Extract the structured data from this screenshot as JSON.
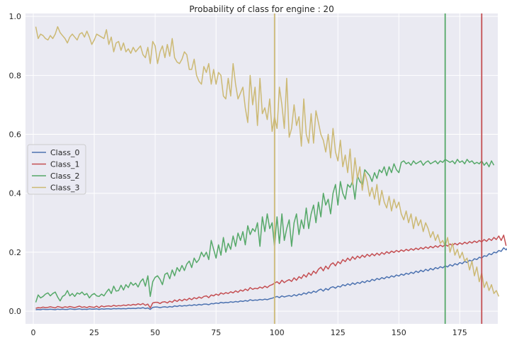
{
  "chart_data": {
    "type": "line",
    "title": "Probability of class for engine : 20",
    "xlabel": "",
    "ylabel": "",
    "xlim": [
      -3.2,
      190.6
    ],
    "ylim": [
      -0.043,
      1.01
    ],
    "x_ticks": [
      0,
      25,
      50,
      75,
      100,
      125,
      150,
      175
    ],
    "y_ticks": [
      0.0,
      0.2,
      0.4,
      0.6,
      0.8,
      1.0
    ],
    "x_tick_labels": [
      "0",
      "25",
      "50",
      "75",
      "100",
      "125",
      "150",
      "175"
    ],
    "y_tick_labels": [
      "0.0",
      "0.2",
      "0.4",
      "0.6",
      "0.8",
      "1.0"
    ],
    "grid": true,
    "legend_position": "center-left",
    "background_color": "#eaeaf2",
    "x_start": 1,
    "series": [
      {
        "name": "Class_0",
        "color": "#4c72b0",
        "values": [
          0.005,
          0.006,
          0.005,
          0.007,
          0.006,
          0.006,
          0.007,
          0.006,
          0.005,
          0.007,
          0.006,
          0.007,
          0.006,
          0.006,
          0.008,
          0.007,
          0.006,
          0.007,
          0.008,
          0.006,
          0.007,
          0.006,
          0.008,
          0.007,
          0.007,
          0.008,
          0.006,
          0.008,
          0.007,
          0.008,
          0.008,
          0.007,
          0.009,
          0.008,
          0.009,
          0.008,
          0.009,
          0.008,
          0.01,
          0.009,
          0.01,
          0.009,
          0.011,
          0.01,
          0.012,
          0.009,
          0.011,
          0.006,
          0.013,
          0.014,
          0.014,
          0.012,
          0.014,
          0.015,
          0.013,
          0.016,
          0.014,
          0.018,
          0.016,
          0.019,
          0.017,
          0.019,
          0.018,
          0.021,
          0.019,
          0.022,
          0.02,
          0.023,
          0.021,
          0.024,
          0.024,
          0.022,
          0.026,
          0.025,
          0.028,
          0.026,
          0.03,
          0.028,
          0.03,
          0.029,
          0.032,
          0.03,
          0.033,
          0.031,
          0.035,
          0.033,
          0.036,
          0.034,
          0.039,
          0.036,
          0.038,
          0.037,
          0.04,
          0.038,
          0.041,
          0.039,
          0.042,
          0.044,
          0.047,
          0.05,
          0.046,
          0.052,
          0.048,
          0.051,
          0.053,
          0.05,
          0.056,
          0.052,
          0.058,
          0.055,
          0.062,
          0.058,
          0.065,
          0.061,
          0.068,
          0.064,
          0.071,
          0.075,
          0.068,
          0.077,
          0.072,
          0.08,
          0.083,
          0.078,
          0.085,
          0.082,
          0.09,
          0.086,
          0.093,
          0.088,
          0.096,
          0.091,
          0.098,
          0.094,
          0.101,
          0.097,
          0.104,
          0.1,
          0.108,
          0.104,
          0.111,
          0.107,
          0.114,
          0.11,
          0.117,
          0.113,
          0.12,
          0.116,
          0.123,
          0.119,
          0.126,
          0.122,
          0.129,
          0.125,
          0.132,
          0.128,
          0.136,
          0.131,
          0.139,
          0.134,
          0.142,
          0.137,
          0.145,
          0.14,
          0.148,
          0.144,
          0.151,
          0.147,
          0.154,
          0.15,
          0.158,
          0.153,
          0.161,
          0.157,
          0.165,
          0.161,
          0.169,
          0.165,
          0.173,
          0.17,
          0.178,
          0.175,
          0.183,
          0.18,
          0.188,
          0.186,
          0.195,
          0.192,
          0.2,
          0.198,
          0.206,
          0.203,
          0.215,
          0.208,
          0.218,
          0.205
        ]
      },
      {
        "name": "Class_1",
        "color": "#c44e52",
        "values": [
          0.01,
          0.012,
          0.011,
          0.014,
          0.012,
          0.013,
          0.015,
          0.013,
          0.011,
          0.016,
          0.014,
          0.012,
          0.015,
          0.013,
          0.016,
          0.014,
          0.012,
          0.015,
          0.017,
          0.013,
          0.015,
          0.012,
          0.016,
          0.014,
          0.013,
          0.017,
          0.012,
          0.018,
          0.015,
          0.017,
          0.018,
          0.016,
          0.02,
          0.017,
          0.019,
          0.018,
          0.021,
          0.019,
          0.022,
          0.02,
          0.023,
          0.021,
          0.025,
          0.022,
          0.026,
          0.02,
          0.024,
          0.011,
          0.028,
          0.03,
          0.03,
          0.026,
          0.031,
          0.032,
          0.028,
          0.034,
          0.03,
          0.038,
          0.033,
          0.04,
          0.035,
          0.041,
          0.037,
          0.044,
          0.039,
          0.046,
          0.042,
          0.048,
          0.044,
          0.05,
          0.052,
          0.046,
          0.055,
          0.052,
          0.058,
          0.054,
          0.062,
          0.058,
          0.063,
          0.06,
          0.066,
          0.062,
          0.069,
          0.064,
          0.072,
          0.068,
          0.075,
          0.07,
          0.08,
          0.074,
          0.078,
          0.076,
          0.082,
          0.078,
          0.085,
          0.08,
          0.087,
          0.09,
          0.095,
          0.1,
          0.093,
          0.105,
          0.097,
          0.103,
          0.107,
          0.101,
          0.113,
          0.105,
          0.117,
          0.111,
          0.124,
          0.116,
          0.13,
          0.122,
          0.136,
          0.128,
          0.142,
          0.149,
          0.137,
          0.153,
          0.143,
          0.158,
          0.164,
          0.154,
          0.168,
          0.161,
          0.175,
          0.168,
          0.18,
          0.172,
          0.185,
          0.176,
          0.187,
          0.18,
          0.19,
          0.183,
          0.193,
          0.186,
          0.195,
          0.188,
          0.197,
          0.19,
          0.199,
          0.193,
          0.202,
          0.196,
          0.204,
          0.199,
          0.206,
          0.201,
          0.208,
          0.203,
          0.21,
          0.205,
          0.212,
          0.207,
          0.214,
          0.209,
          0.216,
          0.211,
          0.218,
          0.213,
          0.22,
          0.215,
          0.222,
          0.217,
          0.224,
          0.219,
          0.226,
          0.221,
          0.228,
          0.223,
          0.23,
          0.225,
          0.232,
          0.227,
          0.234,
          0.229,
          0.236,
          0.231,
          0.238,
          0.233,
          0.24,
          0.235,
          0.243,
          0.237,
          0.246,
          0.24,
          0.25,
          0.243,
          0.255,
          0.24,
          0.258,
          0.222
        ]
      },
      {
        "name": "Class_2",
        "color": "#55a868",
        "values": [
          0.03,
          0.055,
          0.045,
          0.05,
          0.058,
          0.062,
          0.052,
          0.06,
          0.065,
          0.048,
          0.035,
          0.05,
          0.055,
          0.07,
          0.052,
          0.06,
          0.05,
          0.062,
          0.058,
          0.065,
          0.055,
          0.06,
          0.045,
          0.055,
          0.06,
          0.052,
          0.05,
          0.058,
          0.052,
          0.065,
          0.075,
          0.06,
          0.085,
          0.068,
          0.07,
          0.088,
          0.072,
          0.09,
          0.08,
          0.098,
          0.088,
          0.095,
          0.082,
          0.1,
          0.11,
          0.085,
          0.12,
          0.05,
          0.1,
          0.115,
          0.12,
          0.108,
          0.09,
          0.125,
          0.13,
          0.11,
          0.14,
          0.12,
          0.148,
          0.135,
          0.155,
          0.138,
          0.16,
          0.17,
          0.148,
          0.18,
          0.165,
          0.175,
          0.2,
          0.185,
          0.2,
          0.175,
          0.24,
          0.21,
          0.18,
          0.225,
          0.19,
          0.25,
          0.2,
          0.23,
          0.21,
          0.255,
          0.22,
          0.265,
          0.24,
          0.27,
          0.225,
          0.29,
          0.26,
          0.28,
          0.27,
          0.3,
          0.22,
          0.32,
          0.27,
          0.33,
          0.28,
          0.3,
          0.22,
          0.32,
          0.23,
          0.33,
          0.24,
          0.28,
          0.31,
          0.22,
          0.3,
          0.33,
          0.26,
          0.31,
          0.28,
          0.35,
          0.28,
          0.33,
          0.36,
          0.3,
          0.37,
          0.32,
          0.4,
          0.36,
          0.38,
          0.33,
          0.4,
          0.43,
          0.36,
          0.44,
          0.4,
          0.38,
          0.43,
          0.42,
          0.44,
          0.38,
          0.46,
          0.44,
          0.43,
          0.48,
          0.47,
          0.46,
          0.44,
          0.47,
          0.45,
          0.48,
          0.47,
          0.49,
          0.46,
          0.49,
          0.47,
          0.5,
          0.48,
          0.47,
          0.505,
          0.51,
          0.5,
          0.505,
          0.495,
          0.51,
          0.5,
          0.505,
          0.51,
          0.495,
          0.505,
          0.51,
          0.5,
          0.505,
          0.51,
          0.5,
          0.51,
          0.505,
          0.515,
          0.51,
          0.505,
          0.51,
          0.5,
          0.515,
          0.505,
          0.51,
          0.5,
          0.515,
          0.505,
          0.51,
          0.5,
          0.505,
          0.5,
          0.51,
          0.495,
          0.505,
          0.49,
          0.51,
          0.495
        ]
      },
      {
        "name": "Class_3",
        "color": "#ccb974",
        "values": [
          0.965,
          0.925,
          0.94,
          0.935,
          0.925,
          0.92,
          0.935,
          0.925,
          0.94,
          0.965,
          0.945,
          0.935,
          0.925,
          0.91,
          0.93,
          0.94,
          0.93,
          0.92,
          0.94,
          0.945,
          0.93,
          0.95,
          0.93,
          0.905,
          0.92,
          0.94,
          0.935,
          0.93,
          0.925,
          0.955,
          0.905,
          0.93,
          0.88,
          0.91,
          0.915,
          0.885,
          0.91,
          0.88,
          0.89,
          0.875,
          0.895,
          0.88,
          0.89,
          0.9,
          0.87,
          0.86,
          0.895,
          0.84,
          0.915,
          0.9,
          0.84,
          0.88,
          0.9,
          0.86,
          0.905,
          0.865,
          0.925,
          0.86,
          0.845,
          0.84,
          0.855,
          0.88,
          0.87,
          0.82,
          0.82,
          0.855,
          0.8,
          0.78,
          0.77,
          0.83,
          0.81,
          0.84,
          0.77,
          0.82,
          0.77,
          0.81,
          0.8,
          0.73,
          0.72,
          0.79,
          0.73,
          0.84,
          0.77,
          0.72,
          0.74,
          0.76,
          0.69,
          0.64,
          0.8,
          0.7,
          0.76,
          0.63,
          0.79,
          0.67,
          0.69,
          0.65,
          0.72,
          0.61,
          0.66,
          0.62,
          0.76,
          0.7,
          0.62,
          0.79,
          0.59,
          0.62,
          0.7,
          0.63,
          0.66,
          0.56,
          0.72,
          0.6,
          0.57,
          0.67,
          0.57,
          0.68,
          0.64,
          0.6,
          0.58,
          0.54,
          0.6,
          0.52,
          0.62,
          0.54,
          0.51,
          0.58,
          0.49,
          0.53,
          0.47,
          0.55,
          0.43,
          0.52,
          0.45,
          0.49,
          0.41,
          0.47,
          0.44,
          0.39,
          0.42,
          0.38,
          0.43,
          0.36,
          0.41,
          0.37,
          0.35,
          0.39,
          0.34,
          0.38,
          0.35,
          0.37,
          0.33,
          0.31,
          0.34,
          0.3,
          0.33,
          0.28,
          0.32,
          0.29,
          0.31,
          0.27,
          0.3,
          0.28,
          0.25,
          0.27,
          0.24,
          0.26,
          0.23,
          0.24,
          0.22,
          0.25,
          0.2,
          0.23,
          0.19,
          0.21,
          0.18,
          0.2,
          0.17,
          0.18,
          0.14,
          0.17,
          0.12,
          0.15,
          0.1,
          0.13,
          0.08,
          0.1,
          0.07,
          0.09,
          0.06,
          0.07,
          0.05
        ]
      }
    ],
    "vertical_lines": [
      {
        "x": 99,
        "color": "#ccb974"
      },
      {
        "x": 169,
        "color": "#55a868"
      },
      {
        "x": 184,
        "color": "#c44e52"
      }
    ]
  }
}
